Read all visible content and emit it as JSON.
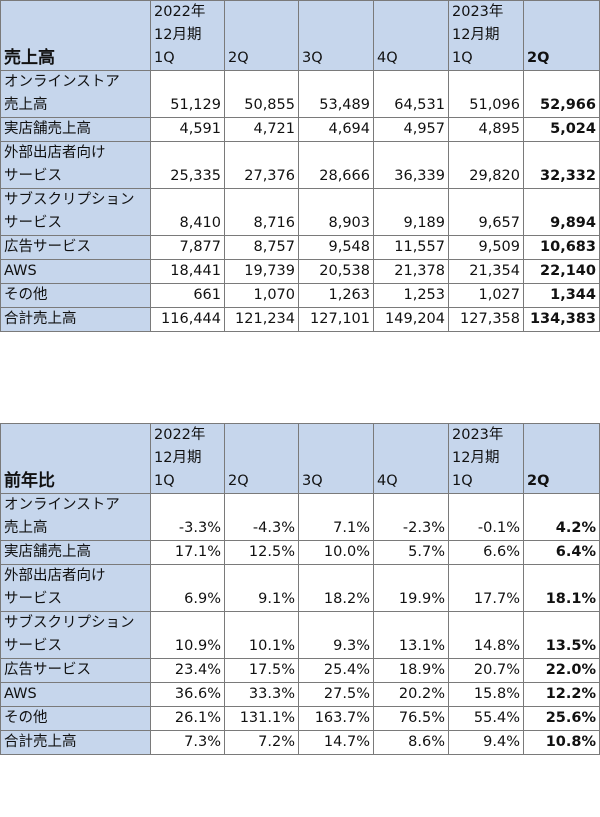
{
  "sales": {
    "title": "売上高",
    "headers": [
      [
        "2022年",
        "12月期",
        "1Q"
      ],
      [
        "2Q"
      ],
      [
        "3Q"
      ],
      [
        "4Q"
      ],
      [
        "2023年",
        "12月期",
        "1Q"
      ],
      [
        "2Q"
      ]
    ],
    "rows": [
      {
        "label": [
          "オンラインストア",
          "売上高"
        ],
        "values": [
          "51,129",
          "50,855",
          "53,489",
          "64,531",
          "51,096",
          "52,966"
        ]
      },
      {
        "label": [
          "実店舗売上高"
        ],
        "values": [
          "4,591",
          "4,721",
          "4,694",
          "4,957",
          "4,895",
          "5,024"
        ]
      },
      {
        "label": [
          "外部出店者向け",
          "サービス"
        ],
        "values": [
          "25,335",
          "27,376",
          "28,666",
          "36,339",
          "29,820",
          "32,332"
        ]
      },
      {
        "label": [
          "サブスクリプション",
          "サービス"
        ],
        "values": [
          "8,410",
          "8,716",
          "8,903",
          "9,189",
          "9,657",
          "9,894"
        ]
      },
      {
        "label": [
          "広告サービス"
        ],
        "values": [
          "7,877",
          "8,757",
          "9,548",
          "11,557",
          "9,509",
          "10,683"
        ]
      },
      {
        "label": [
          "AWS"
        ],
        "values": [
          "18,441",
          "19,739",
          "20,538",
          "21,378",
          "21,354",
          "22,140"
        ]
      },
      {
        "label": [
          "その他"
        ],
        "values": [
          "661",
          "1,070",
          "1,263",
          "1,253",
          "1,027",
          "1,344"
        ]
      }
    ],
    "total": {
      "label": [
        "合計売上高"
      ],
      "values": [
        "116,444",
        "121,234",
        "127,101",
        "149,204",
        "127,358",
        "134,383"
      ]
    }
  },
  "yoy": {
    "title": "前年比",
    "headers": [
      [
        "2022年",
        "12月期",
        "1Q"
      ],
      [
        "2Q"
      ],
      [
        "3Q"
      ],
      [
        "4Q"
      ],
      [
        "2023年",
        "12月期",
        "1Q"
      ],
      [
        "2Q"
      ]
    ],
    "rows": [
      {
        "label": [
          "オンラインストア",
          "売上高"
        ],
        "values": [
          "-3.3%",
          "-4.3%",
          "7.1%",
          "-2.3%",
          "-0.1%",
          "4.2%"
        ]
      },
      {
        "label": [
          "実店舗売上高"
        ],
        "values": [
          "17.1%",
          "12.5%",
          "10.0%",
          "5.7%",
          "6.6%",
          "6.4%"
        ]
      },
      {
        "label": [
          "外部出店者向け",
          "サービス"
        ],
        "values": [
          "6.9%",
          "9.1%",
          "18.2%",
          "19.9%",
          "17.7%",
          "18.1%"
        ]
      },
      {
        "label": [
          "サブスクリプション",
          "サービス"
        ],
        "values": [
          "10.9%",
          "10.1%",
          "9.3%",
          "13.1%",
          "14.8%",
          "13.5%"
        ]
      },
      {
        "label": [
          "広告サービス"
        ],
        "values": [
          "23.4%",
          "17.5%",
          "25.4%",
          "18.9%",
          "20.7%",
          "22.0%"
        ]
      },
      {
        "label": [
          "AWS"
        ],
        "values": [
          "36.6%",
          "33.3%",
          "27.5%",
          "20.2%",
          "15.8%",
          "12.2%"
        ]
      },
      {
        "label": [
          "その他"
        ],
        "values": [
          "26.1%",
          "131.1%",
          "163.7%",
          "76.5%",
          "55.4%",
          "25.6%"
        ]
      }
    ],
    "total": {
      "label": [
        "合計売上高"
      ],
      "values": [
        "7.3%",
        "7.2%",
        "14.7%",
        "8.6%",
        "9.4%",
        "10.8%"
      ]
    }
  }
}
